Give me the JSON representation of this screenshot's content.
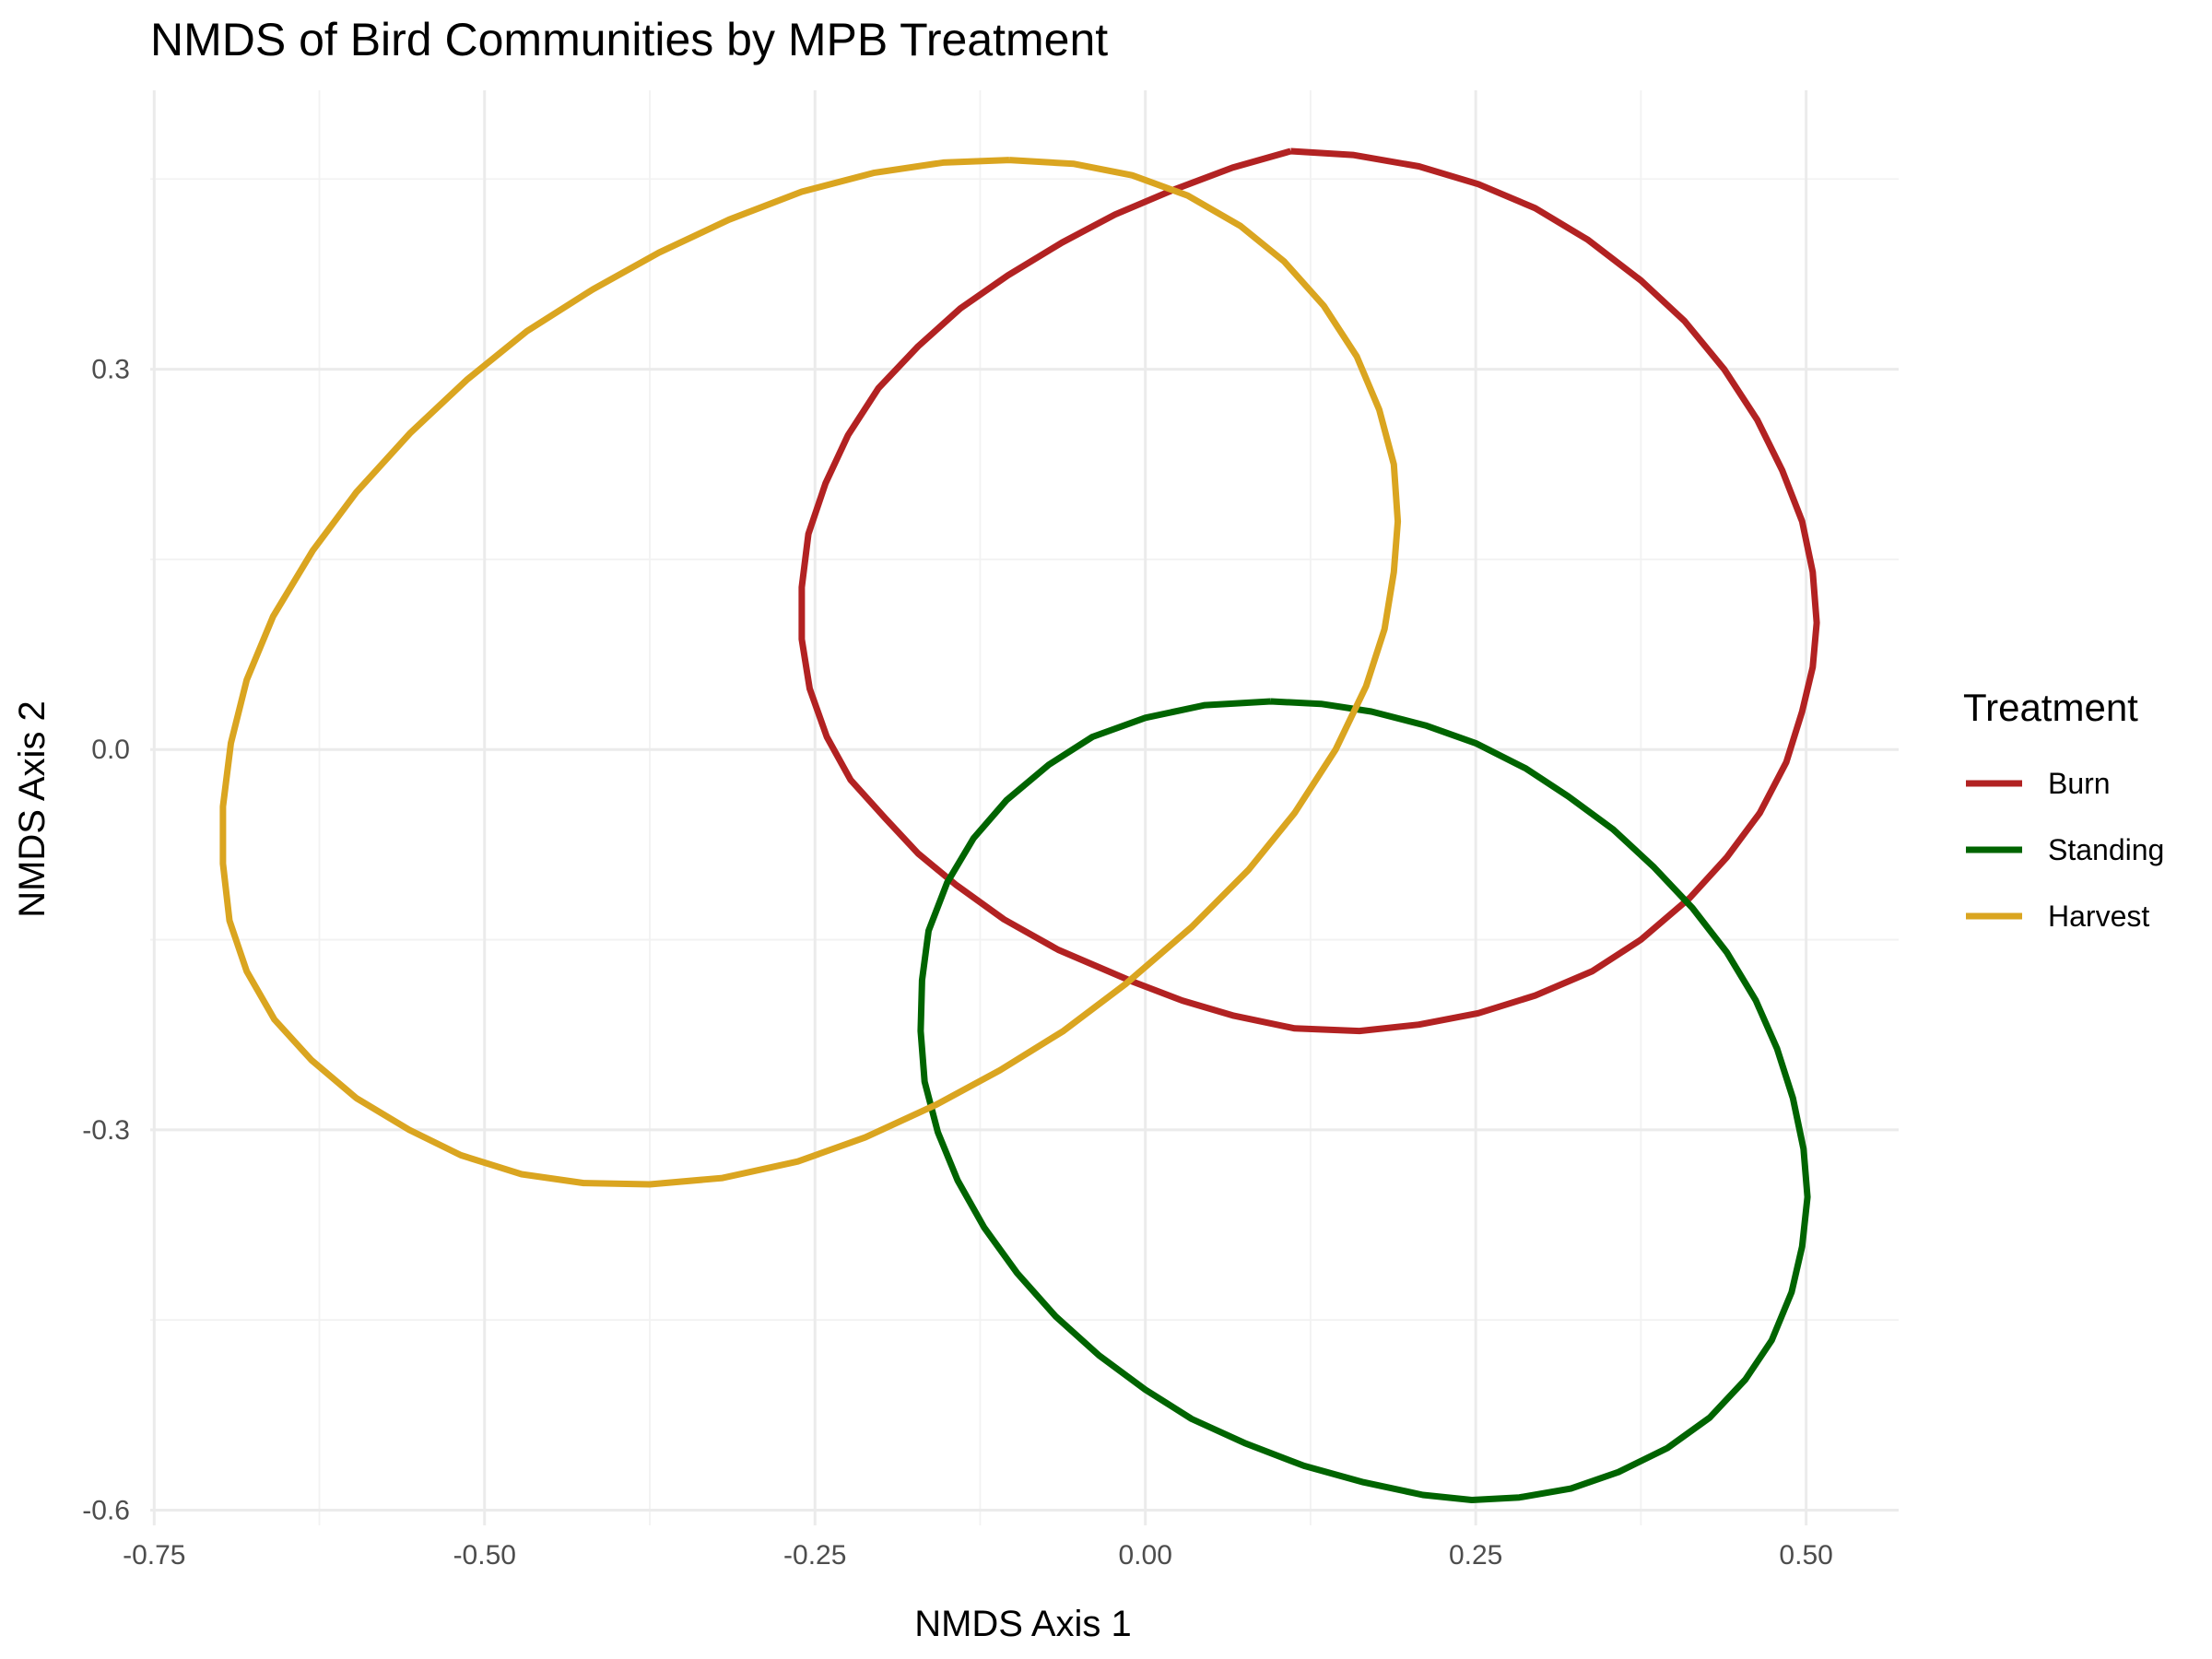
{
  "chart_data": {
    "type": "line",
    "title": "NMDS of Bird Communities by MPB Treatment",
    "xlabel": "NMDS Axis 1",
    "ylabel": "NMDS Axis 2",
    "xlim": [
      -0.753,
      0.57
    ],
    "ylim": [
      -0.612,
      0.52
    ],
    "x_ticks": [
      -0.75,
      -0.5,
      -0.25,
      0.0,
      0.25,
      0.5
    ],
    "x_tick_labels": [
      "-0.75",
      "-0.50",
      "-0.25",
      "0.00",
      "0.25",
      "0.50"
    ],
    "y_ticks": [
      -0.6,
      -0.3,
      0.0,
      0.3
    ],
    "y_tick_labels": [
      "-0.6",
      "-0.3",
      "0.0",
      "0.3"
    ],
    "grid": true,
    "legend": {
      "title": "Treatment",
      "position": "right",
      "entries": [
        "Burn",
        "Standing",
        "Harvest"
      ]
    },
    "series": [
      {
        "name": "Burn",
        "color": "#B22222",
        "points": [
          [
            0.11,
            0.472
          ],
          [
            0.157,
            0.469
          ],
          [
            0.207,
            0.46
          ],
          [
            0.252,
            0.446
          ],
          [
            0.295,
            0.427
          ],
          [
            0.335,
            0.402
          ],
          [
            0.375,
            0.37
          ],
          [
            0.408,
            0.338
          ],
          [
            0.438,
            0.3
          ],
          [
            0.463,
            0.26
          ],
          [
            0.482,
            0.22
          ],
          [
            0.497,
            0.18
          ],
          [
            0.505,
            0.14
          ],
          [
            0.508,
            0.1
          ],
          [
            0.505,
            0.065
          ],
          [
            0.497,
            0.03
          ],
          [
            0.485,
            -0.01
          ],
          [
            0.465,
            -0.05
          ],
          [
            0.44,
            -0.085
          ],
          [
            0.412,
            -0.117
          ],
          [
            0.375,
            -0.15
          ],
          [
            0.338,
            -0.175
          ],
          [
            0.295,
            -0.194
          ],
          [
            0.252,
            -0.208
          ],
          [
            0.207,
            -0.217
          ],
          [
            0.162,
            -0.222
          ],
          [
            0.113,
            -0.22
          ],
          [
            0.067,
            -0.21
          ],
          [
            0.028,
            -0.198
          ],
          [
            -0.01,
            -0.183
          ],
          [
            -0.066,
            -0.158
          ],
          [
            -0.107,
            -0.134
          ],
          [
            -0.143,
            -0.107
          ],
          [
            -0.172,
            -0.082
          ],
          [
            -0.197,
            -0.054
          ],
          [
            -0.223,
            -0.024
          ],
          [
            -0.241,
            0.01
          ],
          [
            -0.254,
            0.048
          ],
          [
            -0.26,
            0.087
          ],
          [
            -0.26,
            0.128
          ],
          [
            -0.255,
            0.17
          ],
          [
            -0.242,
            0.21
          ],
          [
            -0.225,
            0.248
          ],
          [
            -0.202,
            0.285
          ],
          [
            -0.172,
            0.318
          ],
          [
            -0.14,
            0.348
          ],
          [
            -0.104,
            0.374
          ],
          [
            -0.063,
            0.4
          ],
          [
            -0.023,
            0.422
          ],
          [
            0.02,
            0.441
          ],
          [
            0.066,
            0.459
          ],
          [
            0.11,
            0.472
          ]
        ]
      },
      {
        "name": "Standing",
        "color": "#006400",
        "points": [
          [
            0.095,
            0.038
          ],
          [
            0.133,
            0.036
          ],
          [
            0.171,
            0.03
          ],
          [
            0.212,
            0.019
          ],
          [
            0.25,
            0.005
          ],
          [
            0.288,
            -0.015
          ],
          [
            0.32,
            -0.037
          ],
          [
            0.354,
            -0.063
          ],
          [
            0.385,
            -0.093
          ],
          [
            0.414,
            -0.125
          ],
          [
            0.44,
            -0.16
          ],
          [
            0.462,
            -0.198
          ],
          [
            0.478,
            -0.236
          ],
          [
            0.49,
            -0.275
          ],
          [
            0.498,
            -0.315
          ],
          [
            0.501,
            -0.353
          ],
          [
            0.497,
            -0.392
          ],
          [
            0.489,
            -0.428
          ],
          [
            0.474,
            -0.466
          ],
          [
            0.454,
            -0.497
          ],
          [
            0.427,
            -0.527
          ],
          [
            0.395,
            -0.551
          ],
          [
            0.358,
            -0.57
          ],
          [
            0.322,
            -0.583
          ],
          [
            0.283,
            -0.59
          ],
          [
            0.247,
            -0.592
          ],
          [
            0.21,
            -0.588
          ],
          [
            0.165,
            -0.578
          ],
          [
            0.12,
            -0.565
          ],
          [
            0.075,
            -0.547
          ],
          [
            0.035,
            -0.528
          ],
          [
            0.0,
            -0.505
          ],
          [
            -0.035,
            -0.478
          ],
          [
            -0.068,
            -0.447
          ],
          [
            -0.097,
            -0.413
          ],
          [
            -0.122,
            -0.377
          ],
          [
            -0.142,
            -0.34
          ],
          [
            -0.157,
            -0.302
          ],
          [
            -0.167,
            -0.262
          ],
          [
            -0.17,
            -0.222
          ],
          [
            -0.169,
            -0.182
          ],
          [
            -0.164,
            -0.143
          ],
          [
            -0.15,
            -0.105
          ],
          [
            -0.13,
            -0.07
          ],
          [
            -0.105,
            -0.04
          ],
          [
            -0.073,
            -0.012
          ],
          [
            -0.04,
            0.01
          ],
          [
            0.0,
            0.025
          ],
          [
            0.045,
            0.035
          ],
          [
            0.095,
            0.038
          ]
        ]
      },
      {
        "name": "Harvest",
        "color": "#DAA520",
        "points": [
          [
            -0.103,
            0.465
          ],
          [
            -0.054,
            0.462
          ],
          [
            -0.01,
            0.453
          ],
          [
            0.032,
            0.437
          ],
          [
            0.072,
            0.413
          ],
          [
            0.105,
            0.385
          ],
          [
            0.135,
            0.35
          ],
          [
            0.16,
            0.31
          ],
          [
            0.177,
            0.268
          ],
          [
            0.188,
            0.225
          ],
          [
            0.191,
            0.18
          ],
          [
            0.188,
            0.14
          ],
          [
            0.181,
            0.095
          ],
          [
            0.167,
            0.05
          ],
          [
            0.144,
            0.0
          ],
          [
            0.113,
            -0.05
          ],
          [
            0.078,
            -0.095
          ],
          [
            0.035,
            -0.14
          ],
          [
            -0.015,
            -0.185
          ],
          [
            -0.062,
            -0.222
          ],
          [
            -0.11,
            -0.253
          ],
          [
            -0.158,
            -0.28
          ],
          [
            -0.212,
            -0.306
          ],
          [
            -0.263,
            -0.325
          ],
          [
            -0.32,
            -0.338
          ],
          [
            -0.375,
            -0.343
          ],
          [
            -0.425,
            -0.342
          ],
          [
            -0.472,
            -0.335
          ],
          [
            -0.518,
            -0.32
          ],
          [
            -0.557,
            -0.3
          ],
          [
            -0.597,
            -0.275
          ],
          [
            -0.631,
            -0.245
          ],
          [
            -0.659,
            -0.213
          ],
          [
            -0.68,
            -0.175
          ],
          [
            -0.693,
            -0.135
          ],
          [
            -0.698,
            -0.09
          ],
          [
            -0.698,
            -0.045
          ],
          [
            -0.692,
            0.005
          ],
          [
            -0.68,
            0.055
          ],
          [
            -0.66,
            0.105
          ],
          [
            -0.63,
            0.157
          ],
          [
            -0.597,
            0.203
          ],
          [
            -0.556,
            0.25
          ],
          [
            -0.513,
            0.292
          ],
          [
            -0.468,
            0.33
          ],
          [
            -0.418,
            0.363
          ],
          [
            -0.368,
            0.392
          ],
          [
            -0.315,
            0.418
          ],
          [
            -0.26,
            0.44
          ],
          [
            -0.205,
            0.455
          ],
          [
            -0.153,
            0.463
          ],
          [
            -0.103,
            0.465
          ]
        ]
      }
    ]
  }
}
